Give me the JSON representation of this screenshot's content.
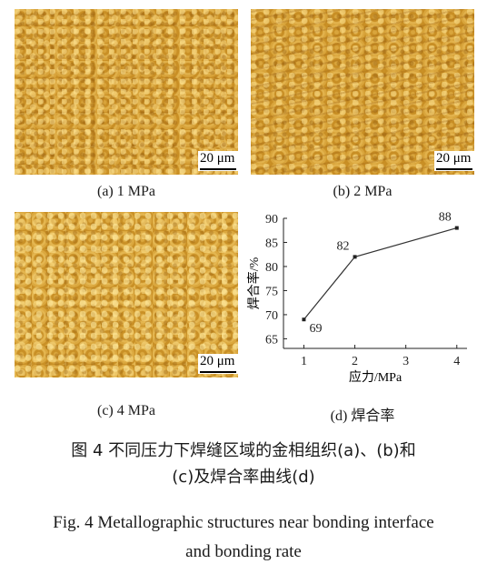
{
  "panels": [
    {
      "label": "(a)  1 MPa",
      "scale": "20 μm"
    },
    {
      "label": "(b)  2 MPa",
      "scale": "20 μm"
    },
    {
      "label": "(c)  4 MPa",
      "scale": "20 μm"
    },
    {
      "label": "(d)  焊合率"
    }
  ],
  "caption": {
    "cn_line1": "图 4    不同压力下焊缝区域的金相组织(a)、(b)和",
    "cn_line2": "(c)及焊合率曲线(d)",
    "en_line1": "Fig. 4 Metallographic structures near bonding interface",
    "en_line2": "and bonding rate"
  },
  "chart_data": {
    "type": "line",
    "x": [
      1,
      2,
      4
    ],
    "values": [
      69,
      82,
      88
    ],
    "data_labels": [
      "69",
      "82",
      "88"
    ],
    "xlabel": "应力/MPa",
    "ylabel": "焊合率/%",
    "xlim": [
      0.6,
      4.2
    ],
    "ylim": [
      63,
      90
    ],
    "xticks": [
      1,
      2,
      3,
      4
    ],
    "yticks": [
      65,
      70,
      75,
      80,
      85,
      90
    ],
    "grid": false,
    "color": "#333333"
  }
}
